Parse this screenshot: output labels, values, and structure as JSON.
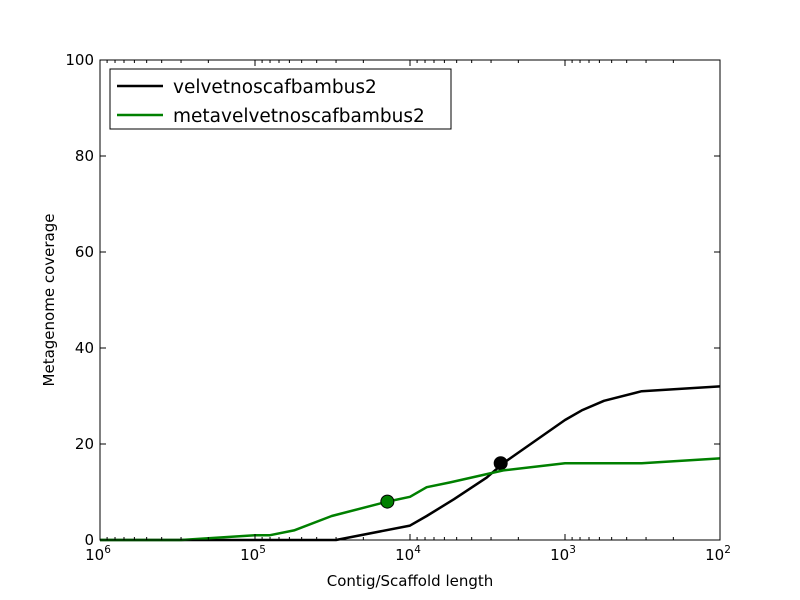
{
  "chart_data": {
    "type": "line",
    "title": "",
    "xlabel": "Contig/Scaffold length",
    "ylabel": "Metagenome coverage",
    "x_scale": "log",
    "x_inverted": true,
    "xlim": [
      1000000,
      100
    ],
    "ylim": [
      0,
      100
    ],
    "x_ticks": [
      {
        "value": 1000000,
        "base": "10",
        "exp": "6"
      },
      {
        "value": 100000,
        "base": "10",
        "exp": "5"
      },
      {
        "value": 10000,
        "base": "10",
        "exp": "4"
      },
      {
        "value": 1000,
        "base": "10",
        "exp": "3"
      },
      {
        "value": 100,
        "base": "10",
        "exp": "2"
      }
    ],
    "y_ticks": [
      {
        "value": 0,
        "label": "0"
      },
      {
        "value": 20,
        "label": "20"
      },
      {
        "value": 40,
        "label": "40"
      },
      {
        "value": 60,
        "label": "60"
      },
      {
        "value": 80,
        "label": "80"
      },
      {
        "value": 100,
        "label": "100"
      }
    ],
    "grid": false,
    "legend_position": "top-left",
    "series": [
      {
        "name": "velvetnoscafbambus2",
        "color": "#000000",
        "x": [
          1000000,
          30000,
          10000,
          7800,
          5200,
          3200,
          2500,
          1000,
          780,
          560,
          320,
          100
        ],
        "y": [
          0,
          0,
          3,
          5,
          8.5,
          13,
          16,
          25,
          27,
          29,
          31,
          32
        ],
        "marker": {
          "x": 2600,
          "y": 16
        }
      },
      {
        "name": "metavelvetnoscafbambus2",
        "color": "#008000",
        "x": [
          1000000,
          300000,
          100000,
          80000,
          56000,
          32000,
          14000,
          10000,
          7800,
          5500,
          2500,
          1000,
          320,
          100
        ],
        "y": [
          0,
          0,
          1,
          1,
          2,
          5,
          8,
          9,
          11,
          12,
          14.5,
          16,
          16,
          17
        ],
        "marker": {
          "x": 14000,
          "y": 8
        }
      }
    ]
  }
}
